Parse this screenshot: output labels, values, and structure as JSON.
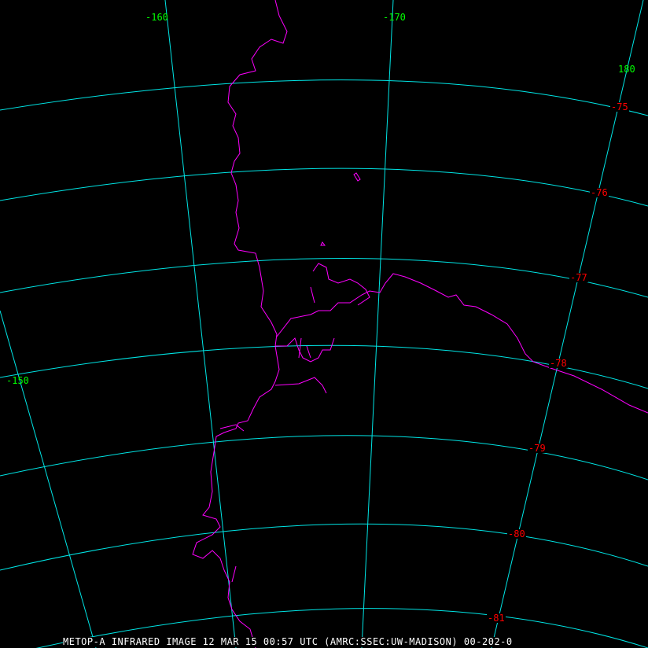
{
  "map": {
    "caption": "METOP-A INFRARED IMAGE 12 MAR 15 00:57 UTC (AMRC:SSEC:UW-MADISON) 00-202-0",
    "colors": {
      "grid": "#00e5e5",
      "coastline": "#ff00ff",
      "longitude_labels": "#00ff00",
      "latitude_labels": "#ff0000",
      "background": "#000000"
    },
    "longitude_labels": [
      "-160",
      "-170",
      "180",
      "-150"
    ],
    "latitude_labels": [
      "-75",
      "-76",
      "-77",
      "-78",
      "-79",
      "-80",
      "-81"
    ]
  }
}
